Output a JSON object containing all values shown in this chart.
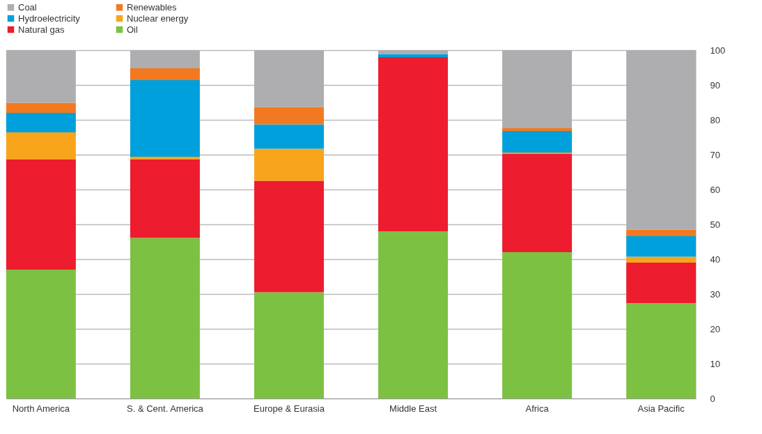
{
  "chart_data": {
    "type": "bar",
    "stacked": true,
    "categories": [
      "North America",
      "S. & Cent. America",
      "Europe & Eurasia",
      "Middle East",
      "Africa",
      "Asia Pacific"
    ],
    "series": [
      {
        "name": "Oil",
        "color": "#7dc142",
        "values": [
          37.0,
          46.1,
          30.5,
          48.0,
          42.0,
          27.4
        ]
      },
      {
        "name": "Natural gas",
        "color": "#ed1c2e",
        "values": [
          31.7,
          22.6,
          32.0,
          50.0,
          28.2,
          11.6
        ]
      },
      {
        "name": "Nuclear energy",
        "color": "#f8a51b",
        "values": [
          7.7,
          0.7,
          9.2,
          0,
          0.4,
          1.7
        ]
      },
      {
        "name": "Hydroelectricity",
        "color": "#00a0dc",
        "values": [
          5.6,
          22.0,
          7.0,
          0.9,
          6.2,
          5.9
        ]
      },
      {
        "name": "Renewables",
        "color": "#f37920",
        "values": [
          2.9,
          3.4,
          5.0,
          0,
          0.8,
          1.9
        ]
      },
      {
        "name": "Coal",
        "color": "#aeadb0",
        "values": [
          15.1,
          5.2,
          16.3,
          1.1,
          22.4,
          51.5
        ]
      }
    ],
    "ylim": [
      0,
      100
    ],
    "yticks": [
      0,
      10,
      20,
      30,
      40,
      50,
      60,
      70,
      80,
      90,
      100
    ],
    "grid": "y",
    "legend": "top left"
  }
}
